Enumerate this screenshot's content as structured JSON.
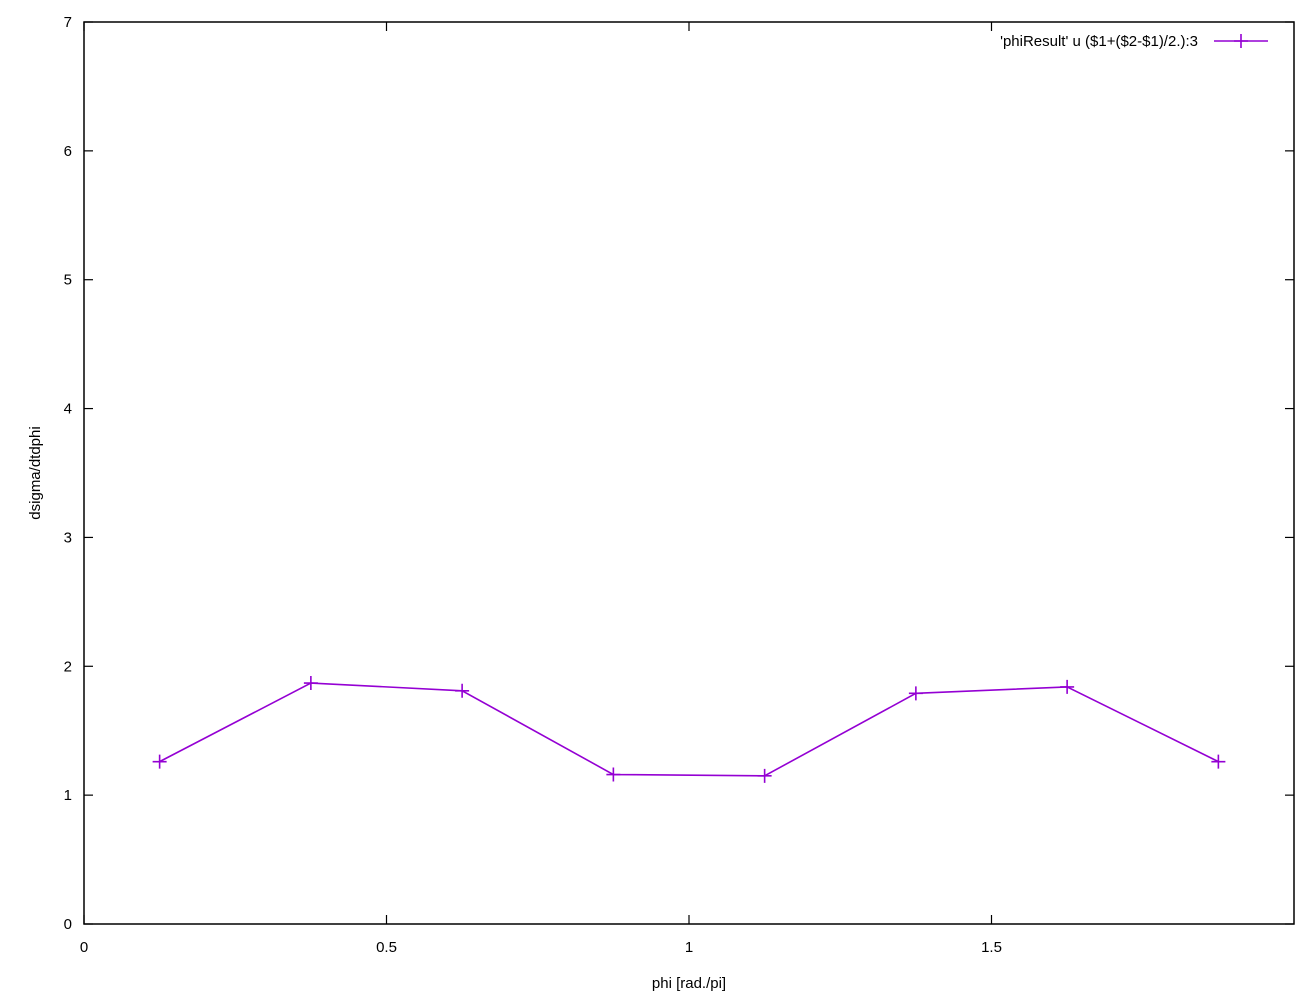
{
  "chart_data": {
    "type": "line",
    "xlabel": "phi [rad./pi]",
    "ylabel": "dsigma/dtdphi",
    "xlim": [
      0,
      2
    ],
    "ylim": [
      0,
      7
    ],
    "x_ticks": [
      {
        "value": 0,
        "label": "0"
      },
      {
        "value": 0.5,
        "label": "0.5"
      },
      {
        "value": 1,
        "label": "1"
      },
      {
        "value": 1.5,
        "label": "1.5"
      }
    ],
    "y_ticks": [
      {
        "value": 0,
        "label": "0"
      },
      {
        "value": 1,
        "label": "1"
      },
      {
        "value": 2,
        "label": "2"
      },
      {
        "value": 3,
        "label": "3"
      },
      {
        "value": 4,
        "label": "4"
      },
      {
        "value": 5,
        "label": "5"
      },
      {
        "value": 6,
        "label": "6"
      },
      {
        "value": 7,
        "label": "7"
      }
    ],
    "grid": false,
    "legend_position": "top-right",
    "series": [
      {
        "name": "'phiResult' u ($1+($2-$1)/2.):3",
        "color": "#9400d3",
        "marker": "plus",
        "x": [
          0.125,
          0.375,
          0.625,
          0.875,
          1.125,
          1.375,
          1.625,
          1.875
        ],
        "y": [
          1.26,
          1.87,
          1.81,
          1.16,
          1.15,
          1.79,
          1.84,
          1.26
        ]
      }
    ]
  }
}
